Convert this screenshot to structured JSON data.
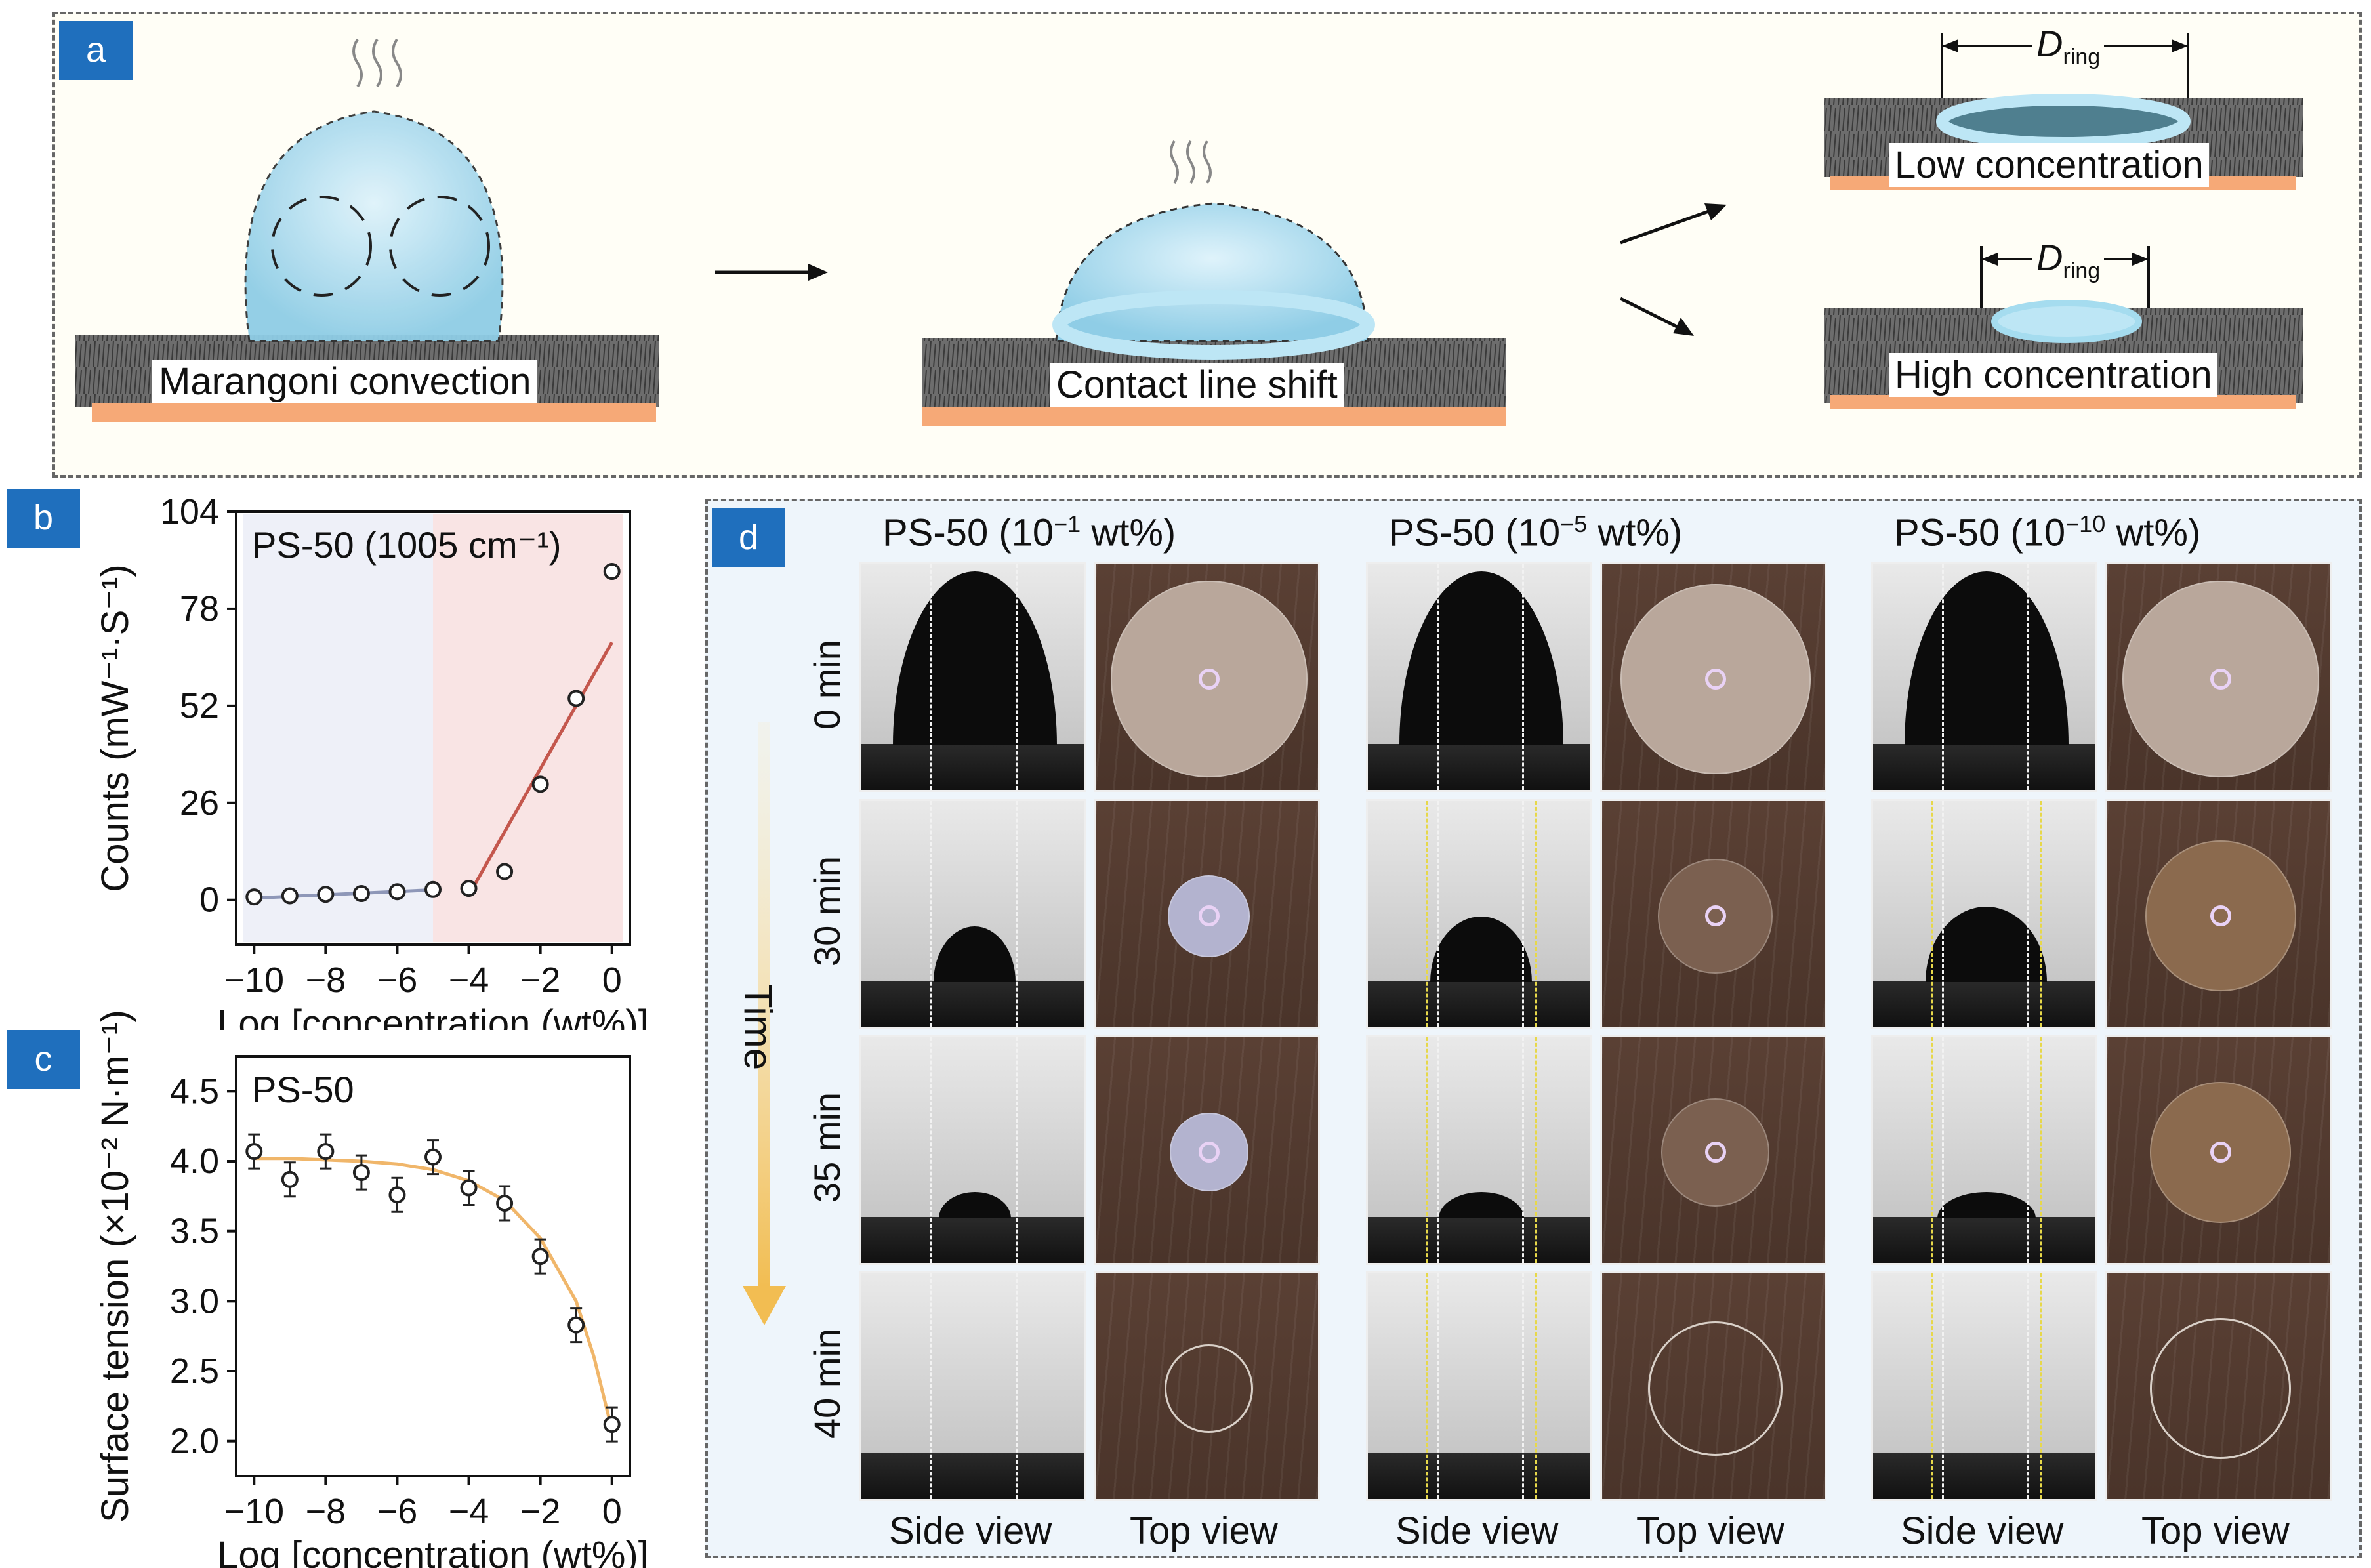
{
  "panel_a": {
    "badge": "a",
    "stage1_label": "Marangoni convection",
    "stage2_label": "Contact line shift",
    "low_label": "Low concentration",
    "high_label": "High concentration",
    "dring_symbol": "D",
    "dring_sub": "ring"
  },
  "panel_b": {
    "badge": "b",
    "chart_data": {
      "type": "scatter",
      "title": "PS-50 (1005 cm⁻¹)",
      "xlabel": "Log [concentration (wt%)]",
      "ylabel": "Counts (mW⁻¹·S⁻¹)",
      "xlim": [
        -10.5,
        0.5
      ],
      "ylim": [
        -12,
        104
      ],
      "xticks": [
        -10,
        -8,
        -6,
        -4,
        -2,
        0
      ],
      "xtick_labels": [
        "−10",
        "−8",
        "−6",
        "−4",
        "−2",
        "0"
      ],
      "yticks": [
        0,
        26,
        52,
        78,
        104
      ],
      "ytick_labels": [
        "0",
        "26",
        "52",
        "78",
        "104"
      ],
      "x": [
        -10,
        -9,
        -8,
        -7,
        -6,
        -5,
        -4,
        -3,
        -2,
        -1,
        0
      ],
      "y": [
        0.8,
        1.1,
        1.5,
        1.7,
        2.2,
        2.8,
        3.1,
        7.6,
        31,
        54,
        88
      ],
      "fit_low": {
        "x": [
          -10,
          -5
        ],
        "y": [
          0.5,
          2.7
        ]
      },
      "fit_high": {
        "x": [
          -3.9,
          0
        ],
        "y": [
          3,
          69
        ]
      },
      "shaded_regions": [
        {
          "x": [
            -10.3,
            -5
          ],
          "color": "#eef0f8"
        },
        {
          "x": [
            -5,
            0.3
          ],
          "color": "#f9e4e4"
        }
      ]
    }
  },
  "panel_c": {
    "badge": "c",
    "chart_data": {
      "type": "scatter",
      "title": "PS-50",
      "xlabel": "Log [concentration (wt%)]",
      "ylabel": "Surface tension (×10⁻² N·m⁻¹)",
      "xlim": [
        -10.5,
        0.5
      ],
      "ylim": [
        1.75,
        4.75
      ],
      "xticks": [
        -10,
        -8,
        -6,
        -4,
        -2,
        0
      ],
      "xtick_labels": [
        "−10",
        "−8",
        "−6",
        "−4",
        "−2",
        "0"
      ],
      "yticks": [
        2.0,
        2.5,
        3.0,
        3.5,
        4.0,
        4.5
      ],
      "ytick_labels": [
        "2.0",
        "2.5",
        "3.0",
        "3.5",
        "4.0",
        "4.5"
      ],
      "x": [
        -10,
        -9,
        -8,
        -7,
        -6,
        -5,
        -4,
        -3,
        -2,
        -1,
        0
      ],
      "y": [
        4.07,
        3.87,
        4.07,
        3.92,
        3.76,
        4.03,
        3.81,
        3.7,
        3.32,
        2.83,
        2.12
      ],
      "fit": {
        "x": [
          -10,
          -9,
          -8,
          -7,
          -6,
          -5,
          -4,
          -3,
          -2,
          -1,
          -0.5,
          0
        ],
        "y": [
          4.02,
          4.02,
          4.01,
          4.0,
          3.98,
          3.94,
          3.86,
          3.72,
          3.45,
          3.0,
          2.6,
          2.08
        ]
      },
      "fit_color": "#f0b66a"
    }
  },
  "panel_d": {
    "badge": "d",
    "columns": [
      {
        "title_pre": "PS-50 (10",
        "title_exp": "−1",
        "title_post": " wt%)"
      },
      {
        "title_pre": "PS-50 (10",
        "title_exp": "−5",
        "title_post": " wt%)"
      },
      {
        "title_pre": "PS-50 (10",
        "title_exp": "−10",
        "title_post": " wt%)"
      }
    ],
    "row_labels": [
      "0 min",
      "30 min",
      "35 min",
      "40 min"
    ],
    "time_label": "Time",
    "side_view": "Side view",
    "top_view": "Top view"
  }
}
